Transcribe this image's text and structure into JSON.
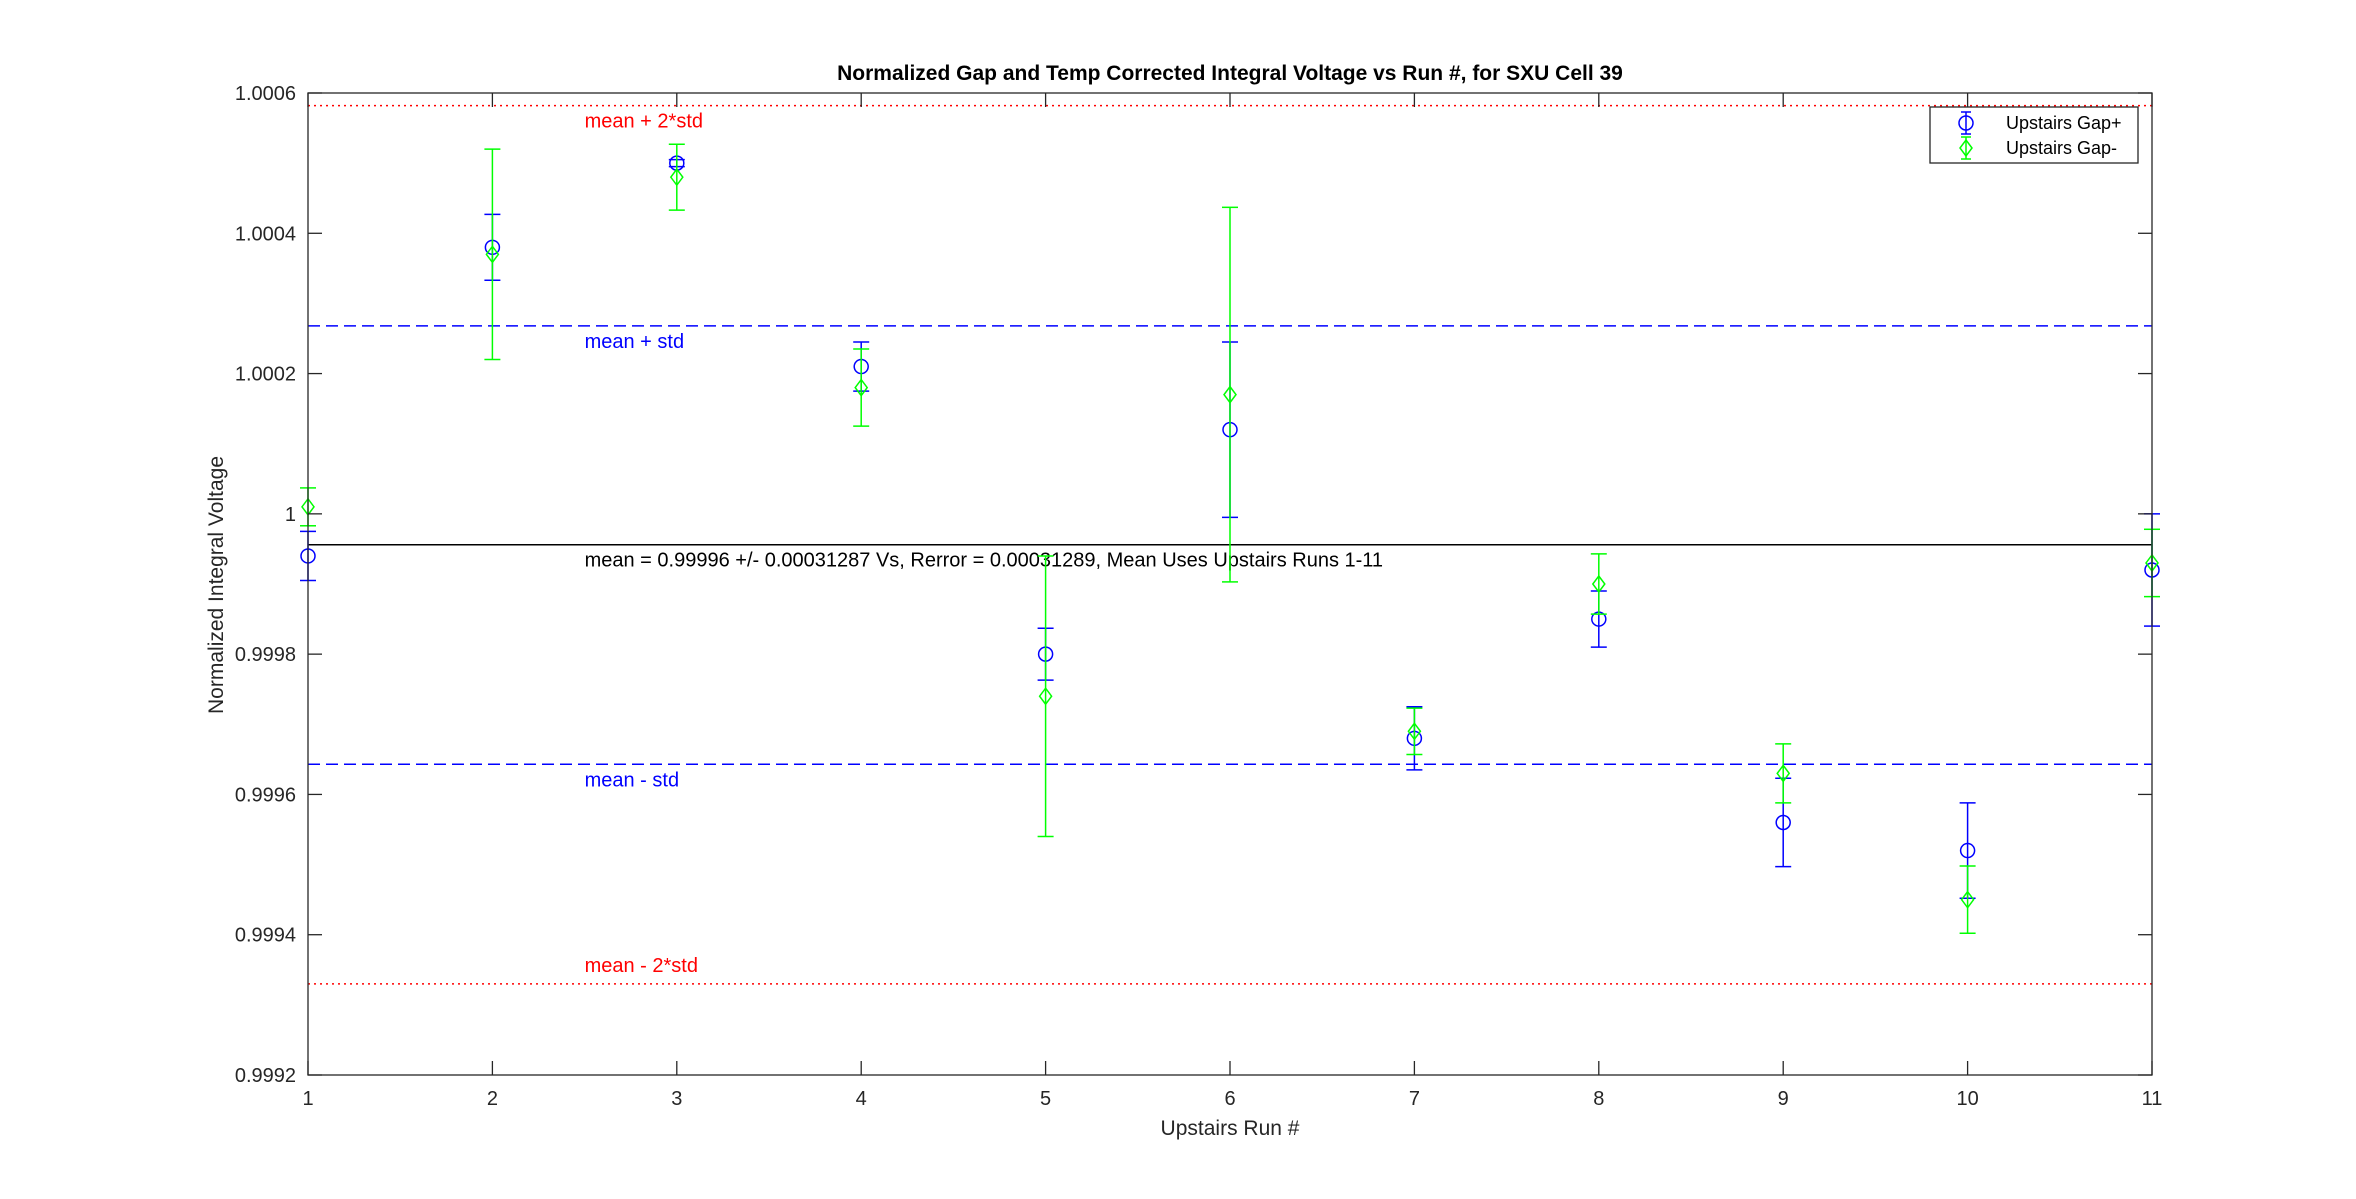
{
  "chart_data": {
    "type": "scatter",
    "title": "Normalized Gap and Temp Corrected Integral Voltage vs Run #, for SXU Cell 39",
    "xlabel": "Upstairs Run #",
    "ylabel": "Normalized Integral Voltage",
    "xlim": [
      1,
      11
    ],
    "ylim": [
      0.9992,
      1.0006
    ],
    "xticks": [
      1,
      2,
      3,
      4,
      5,
      6,
      7,
      8,
      9,
      10,
      11
    ],
    "yticks": [
      0.9992,
      0.9994,
      0.9996,
      0.9998,
      1,
      1.0002,
      1.0004,
      1.0006
    ],
    "xtick_labels": [
      "1",
      "2",
      "3",
      "4",
      "5",
      "6",
      "7",
      "8",
      "9",
      "10",
      "11"
    ],
    "ytick_labels": [
      "0.9992",
      "0.9994",
      "0.9996",
      "0.9998",
      "1",
      "1.0002",
      "1.0004",
      "1.0006"
    ],
    "legend_position": "top-right",
    "series": [
      {
        "name": "Upstairs Gap+",
        "color": "#0000ff",
        "marker": "circle",
        "x": [
          1,
          2,
          3,
          4,
          5,
          6,
          7,
          8,
          9,
          10,
          11
        ],
        "y": [
          0.99994,
          1.00038,
          1.0005,
          1.00021,
          0.9998,
          1.00012,
          0.99968,
          0.99985,
          0.99956,
          0.99952,
          0.99992
        ],
        "err": [
          3.5e-05,
          4.7e-05,
          5e-06,
          3.5e-05,
          3.7e-05,
          0.000125,
          4.5e-05,
          4e-05,
          6.3e-05,
          6.8e-05,
          8e-05
        ]
      },
      {
        "name": "Upstairs Gap-",
        "color": "#00ff00",
        "marker": "diamond",
        "x": [
          1,
          2,
          3,
          4,
          5,
          6,
          7,
          8,
          9,
          10,
          11
        ],
        "y": [
          1.00001,
          1.00037,
          1.00048,
          1.00018,
          0.99974,
          1.00017,
          0.99969,
          0.9999,
          0.99963,
          0.99945,
          0.99993
        ],
        "err": [
          2.7e-05,
          0.00015,
          4.7e-05,
          5.5e-05,
          0.0002,
          0.000267,
          3.3e-05,
          4.3e-05,
          4.2e-05,
          4.8e-05,
          4.8e-05
        ]
      }
    ],
    "reference_lines": [
      {
        "y": 1.000582,
        "color": "#ff0000",
        "style": "dotted",
        "label": "mean + 2*std"
      },
      {
        "y": 1.000268,
        "color": "#0000ff",
        "style": "dashed",
        "label": "mean + std"
      },
      {
        "y": 0.999956,
        "color": "#000000",
        "style": "solid",
        "label": "mean = 0.99996 +/- 0.00031287 Vs, Rerror = 0.00031289, Mean Uses Upstairs Runs 1-11"
      },
      {
        "y": 0.999643,
        "color": "#0000ff",
        "style": "dashed",
        "label": "mean - std"
      },
      {
        "y": 0.99933,
        "color": "#ff0000",
        "style": "dotted",
        "label": "mean - 2*std"
      }
    ],
    "label_x": 2.5
  }
}
